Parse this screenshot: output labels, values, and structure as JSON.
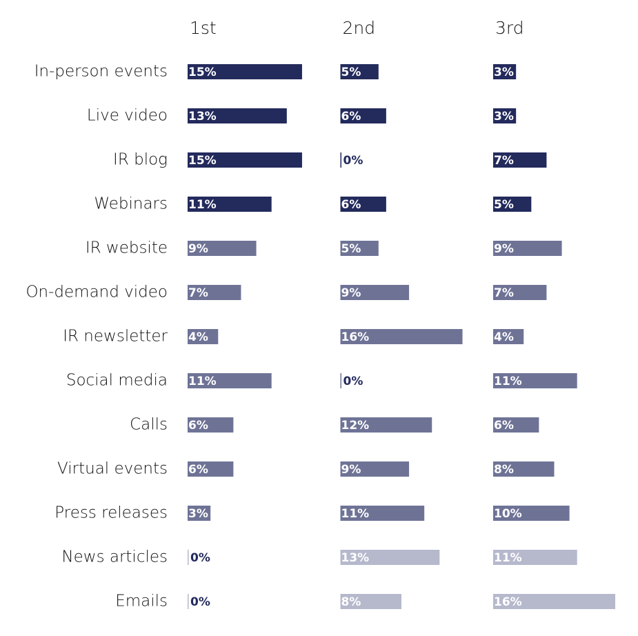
{
  "chart_data": {
    "type": "bar",
    "orientation": "horizontal",
    "categories": [
      "In-person events",
      "Live video",
      "IR blog",
      "Webinars",
      "IR website",
      "On-demand video",
      "IR newsletter",
      "Social media",
      "Calls",
      "Virtual events",
      "Press releases",
      "News articles",
      "Emails"
    ],
    "category_colors": [
      "#232a5c",
      "#232a5c",
      "#232a5c",
      "#232a5c",
      "#6e7396",
      "#6e7396",
      "#6e7396",
      "#6e7396",
      "#6e7396",
      "#6e7396",
      "#6e7396",
      "#b6b8cc",
      "#b6b8cc"
    ],
    "xlim": [
      0,
      16
    ],
    "series": [
      {
        "name": "1st",
        "values": [
          15,
          13,
          15,
          11,
          9,
          7,
          4,
          11,
          6,
          6,
          3,
          0,
          0
        ],
        "value_labels": [
          "15%",
          "13%",
          "15%",
          "11%",
          "9%",
          "7%",
          "4%",
          "11%",
          "6%",
          "6%",
          "3%",
          "0%",
          "0%"
        ]
      },
      {
        "name": "2nd",
        "values": [
          5,
          6,
          0,
          6,
          5,
          9,
          16,
          0,
          12,
          9,
          11,
          13,
          8
        ],
        "value_labels": [
          "5%",
          "6%",
          "0%",
          "6%",
          "5%",
          "9%",
          "16%",
          "0%",
          "12%",
          "9%",
          "11%",
          "13%",
          "8%"
        ]
      },
      {
        "name": "3rd",
        "values": [
          3,
          3,
          7,
          5,
          9,
          7,
          4,
          11,
          6,
          8,
          10,
          11,
          16
        ],
        "value_labels": [
          "3%",
          "3%",
          "7%",
          "5%",
          "9%",
          "7%",
          "4%",
          "11%",
          "6%",
          "8%",
          "10%",
          "11%",
          "16%"
        ]
      }
    ]
  }
}
